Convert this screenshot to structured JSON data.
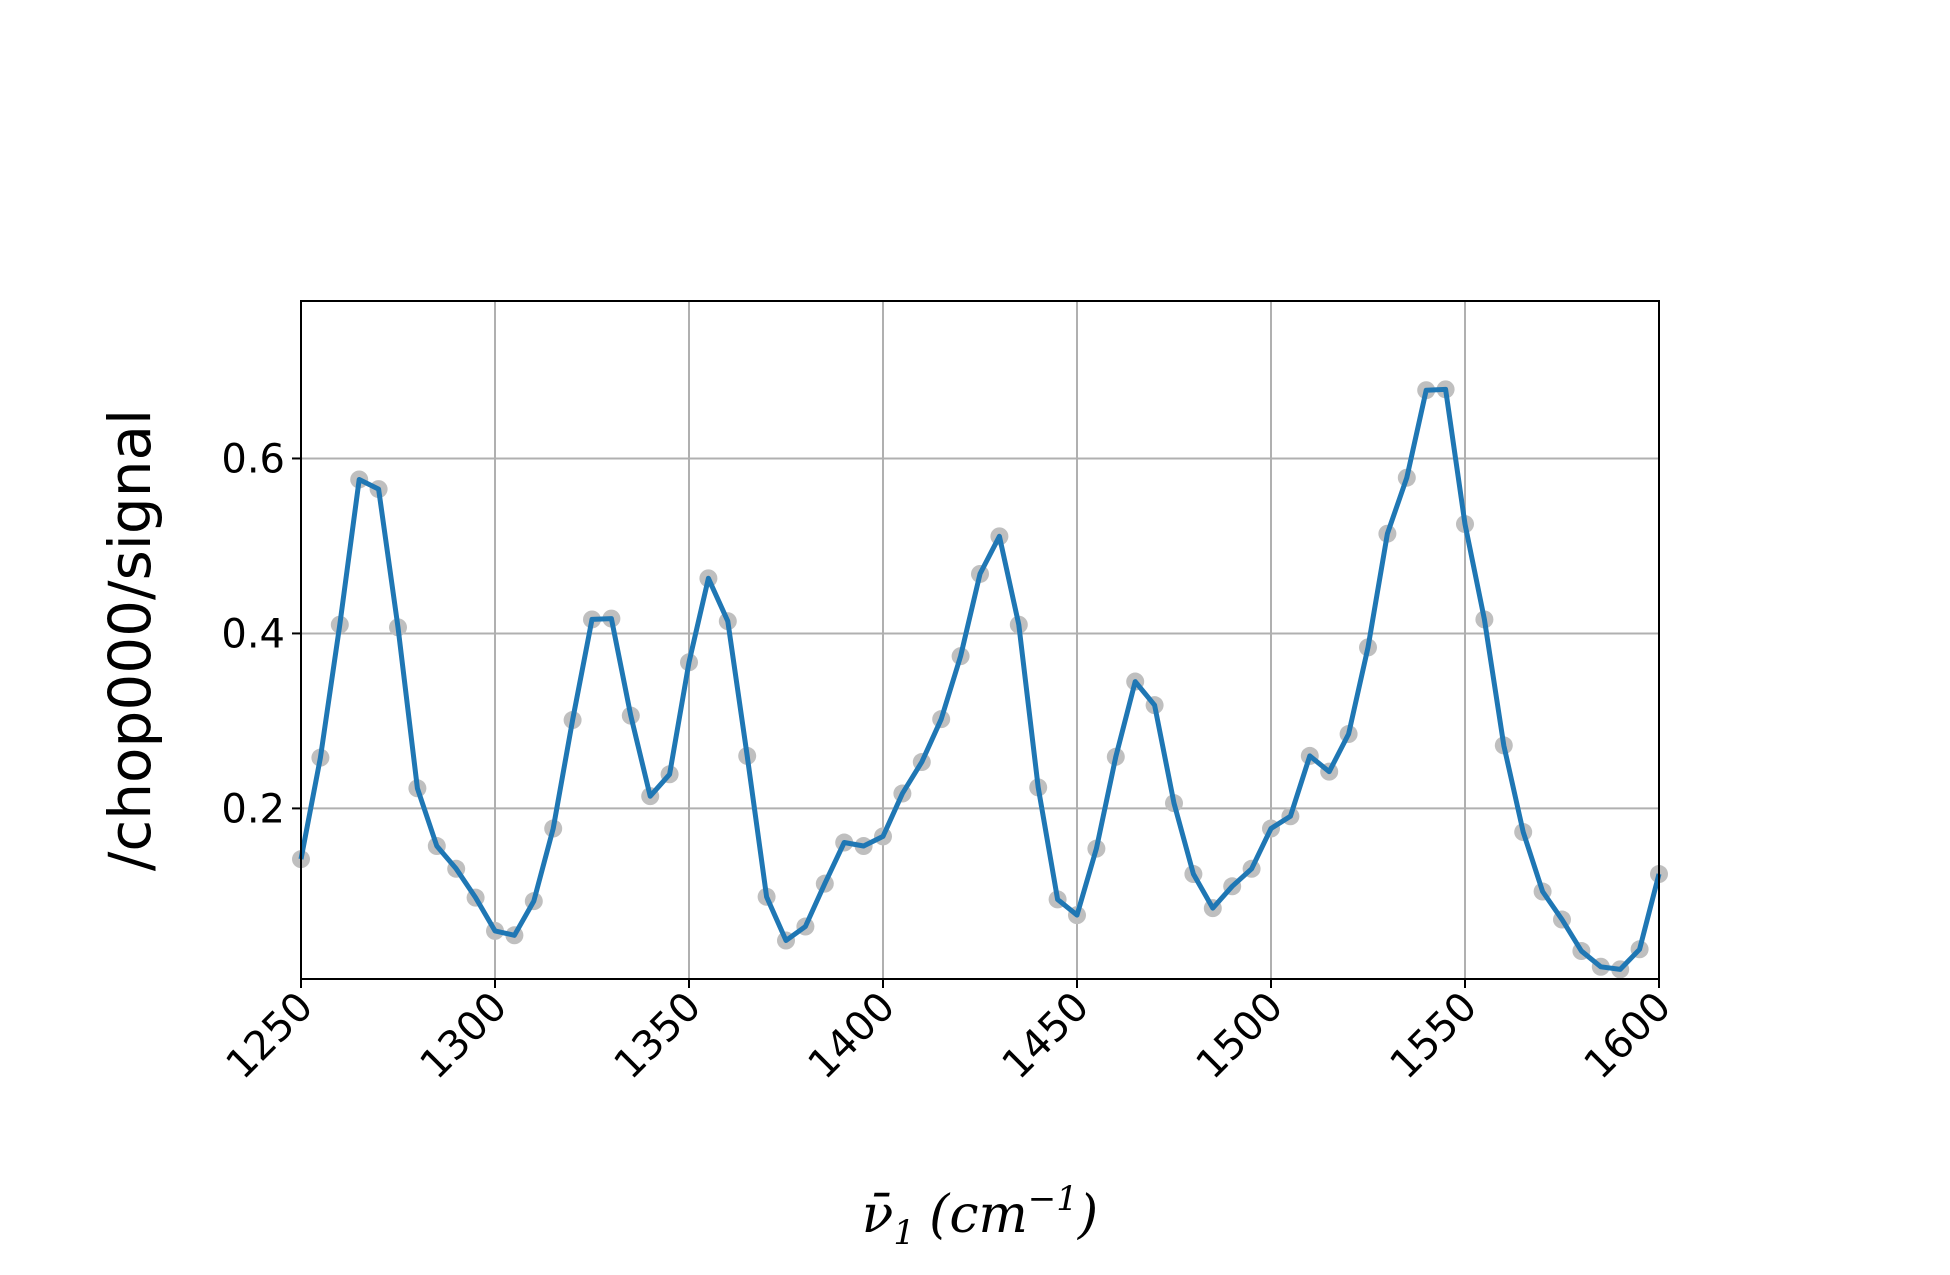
{
  "chart_data": {
    "type": "line",
    "title": "",
    "xlabel": "ν̄₁ (cm⁻¹)",
    "xlabel_main": "ν̄",
    "xlabel_sub": "1",
    "xlabel_unit": "(cm",
    "xlabel_exp": "−1",
    "xlabel_close": ")",
    "ylabel": "/chop000/signal",
    "xlim": [
      1250,
      1600
    ],
    "ylim": [
      0.005,
      0.78
    ],
    "xticks": [
      "1250",
      "1300",
      "1350",
      "1400",
      "1450",
      "1500",
      "1550",
      "1600"
    ],
    "yticks": [
      "0.2",
      "0.4",
      "0.6"
    ],
    "grid": true,
    "colors": {
      "line": "#1f77b4",
      "markers": "#bfbfbf",
      "grid": "#b0b0b0"
    },
    "x": [
      1250,
      1255,
      1260,
      1265,
      1270,
      1275,
      1280,
      1285,
      1290,
      1295,
      1300,
      1305,
      1310,
      1315,
      1320,
      1325,
      1330,
      1335,
      1340,
      1345,
      1350,
      1355,
      1360,
      1365,
      1370,
      1375,
      1380,
      1385,
      1390,
      1395,
      1400,
      1405,
      1410,
      1415,
      1420,
      1425,
      1430,
      1435,
      1440,
      1445,
      1450,
      1455,
      1460,
      1465,
      1470,
      1475,
      1480,
      1485,
      1490,
      1495,
      1500,
      1505,
      1510,
      1515,
      1520,
      1525,
      1530,
      1535,
      1540,
      1545,
      1550,
      1555,
      1560,
      1565,
      1570,
      1575,
      1580,
      1585,
      1590,
      1595,
      1600
    ],
    "y": [
      0.142,
      0.258,
      0.41,
      0.576,
      0.565,
      0.407,
      0.223,
      0.157,
      0.131,
      0.098,
      0.06,
      0.055,
      0.094,
      0.177,
      0.301,
      0.416,
      0.417,
      0.306,
      0.214,
      0.239,
      0.367,
      0.463,
      0.414,
      0.26,
      0.099,
      0.049,
      0.065,
      0.114,
      0.161,
      0.157,
      0.168,
      0.217,
      0.253,
      0.302,
      0.374,
      0.468,
      0.511,
      0.41,
      0.224,
      0.096,
      0.078,
      0.154,
      0.259,
      0.345,
      0.318,
      0.206,
      0.125,
      0.086,
      0.111,
      0.131,
      0.177,
      0.191,
      0.26,
      0.242,
      0.285,
      0.384,
      0.514,
      0.578,
      0.678,
      0.679,
      0.525,
      0.416,
      0.272,
      0.173,
      0.105,
      0.073,
      0.037,
      0.019,
      0.016,
      0.039,
      0.125
    ]
  }
}
